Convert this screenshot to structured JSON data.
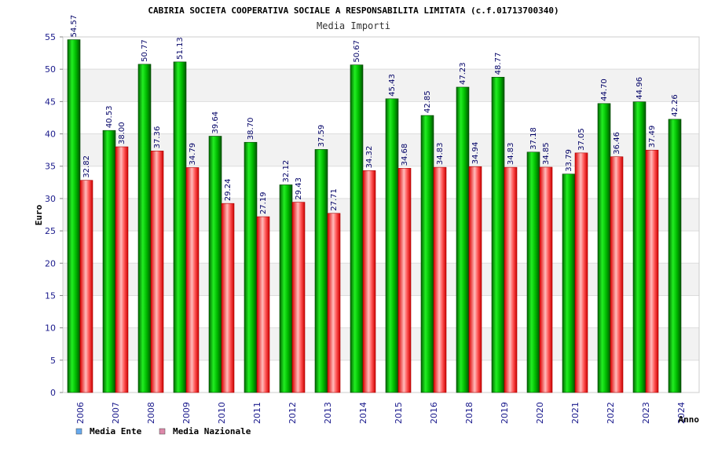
{
  "chart_data": {
    "type": "bar",
    "title": "CABIRIA SOCIETA COOPERATIVA SOCIALE A RESPONSABILITA LIMITATA (c.f.01713700340)",
    "subtitle": "Media Importi",
    "xlabel": "Anno",
    "ylabel": "Euro",
    "ylim": [
      0,
      55
    ],
    "yticks": [
      "0",
      "5",
      "10",
      "15",
      "20",
      "25",
      "30",
      "35",
      "40",
      "45",
      "50",
      "55"
    ],
    "categories": [
      "2006",
      "2007",
      "2008",
      "2009",
      "2010",
      "2011",
      "2012",
      "2013",
      "2014",
      "2015",
      "2016",
      "2018",
      "2019",
      "2020",
      "2021",
      "2022",
      "2023",
      "2024"
    ],
    "series": [
      {
        "name": "Media Ente",
        "values": [
          54.57,
          40.53,
          50.77,
          51.13,
          39.64,
          38.7,
          32.12,
          37.59,
          50.67,
          45.43,
          42.85,
          47.23,
          48.77,
          37.18,
          33.79,
          44.7,
          44.96,
          42.26
        ],
        "labels": [
          "54.57",
          "40.53",
          "50.77",
          "51.13",
          "39.64",
          "38.70",
          "32.12",
          "37.59",
          "50.67",
          "45.43",
          "42.85",
          "47.23",
          "48.77",
          "37.18",
          "33.79",
          "44.70",
          "44.96",
          "42.26"
        ]
      },
      {
        "name": "Media Nazionale",
        "values": [
          32.82,
          38.0,
          37.36,
          34.79,
          29.24,
          27.19,
          29.43,
          27.71,
          34.32,
          34.68,
          34.83,
          34.94,
          34.83,
          34.85,
          37.05,
          36.46,
          37.49,
          null
        ],
        "labels": [
          "32.82",
          "38.00",
          "37.36",
          "34.79",
          "29.24",
          "27.19",
          "29.43",
          "27.71",
          "34.32",
          "34.68",
          "34.83",
          "34.94",
          "34.83",
          "34.85",
          "37.05",
          "36.46",
          "37.49",
          ""
        ]
      }
    ],
    "legend_position": "bottom-left",
    "grid": true,
    "colors": {
      "ente_bar": "#00cc00",
      "nazionale_bar": "#ff3333",
      "legend_ente": "#66aaee",
      "legend_nazionale": "#dd88aa"
    }
  }
}
